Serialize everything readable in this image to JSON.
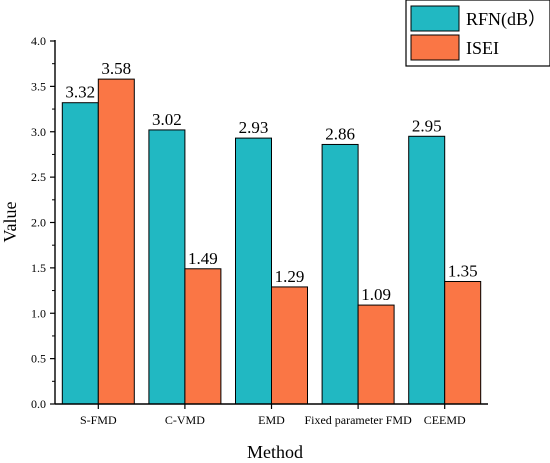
{
  "chart_data": {
    "type": "bar",
    "xlabel": "Method",
    "ylabel": "Value",
    "ylim": [
      0.0,
      4.0
    ],
    "yticks": [
      "0.0",
      "0.5",
      "1.0",
      "1.5",
      "2.0",
      "2.5",
      "3.0",
      "3.5",
      "4.0"
    ],
    "categories": [
      "S-FMD",
      "C-VMD",
      "EMD",
      "Fixed parameter FMD",
      "CEEMD"
    ],
    "series": [
      {
        "name": "RFN(dB）",
        "color": "#21B8C2",
        "values": [
          3.32,
          3.02,
          2.93,
          2.86,
          2.95
        ],
        "labels": [
          "3.32",
          "3.02",
          "2.93",
          "2.86",
          "2.95"
        ]
      },
      {
        "name": "ISEI",
        "color": "#FA7645",
        "values": [
          3.58,
          1.49,
          1.29,
          1.09,
          1.35
        ],
        "labels": [
          "3.58",
          "1.49",
          "1.29",
          "1.09",
          "1.35"
        ]
      }
    ],
    "legend": "top-right",
    "grid": false
  }
}
